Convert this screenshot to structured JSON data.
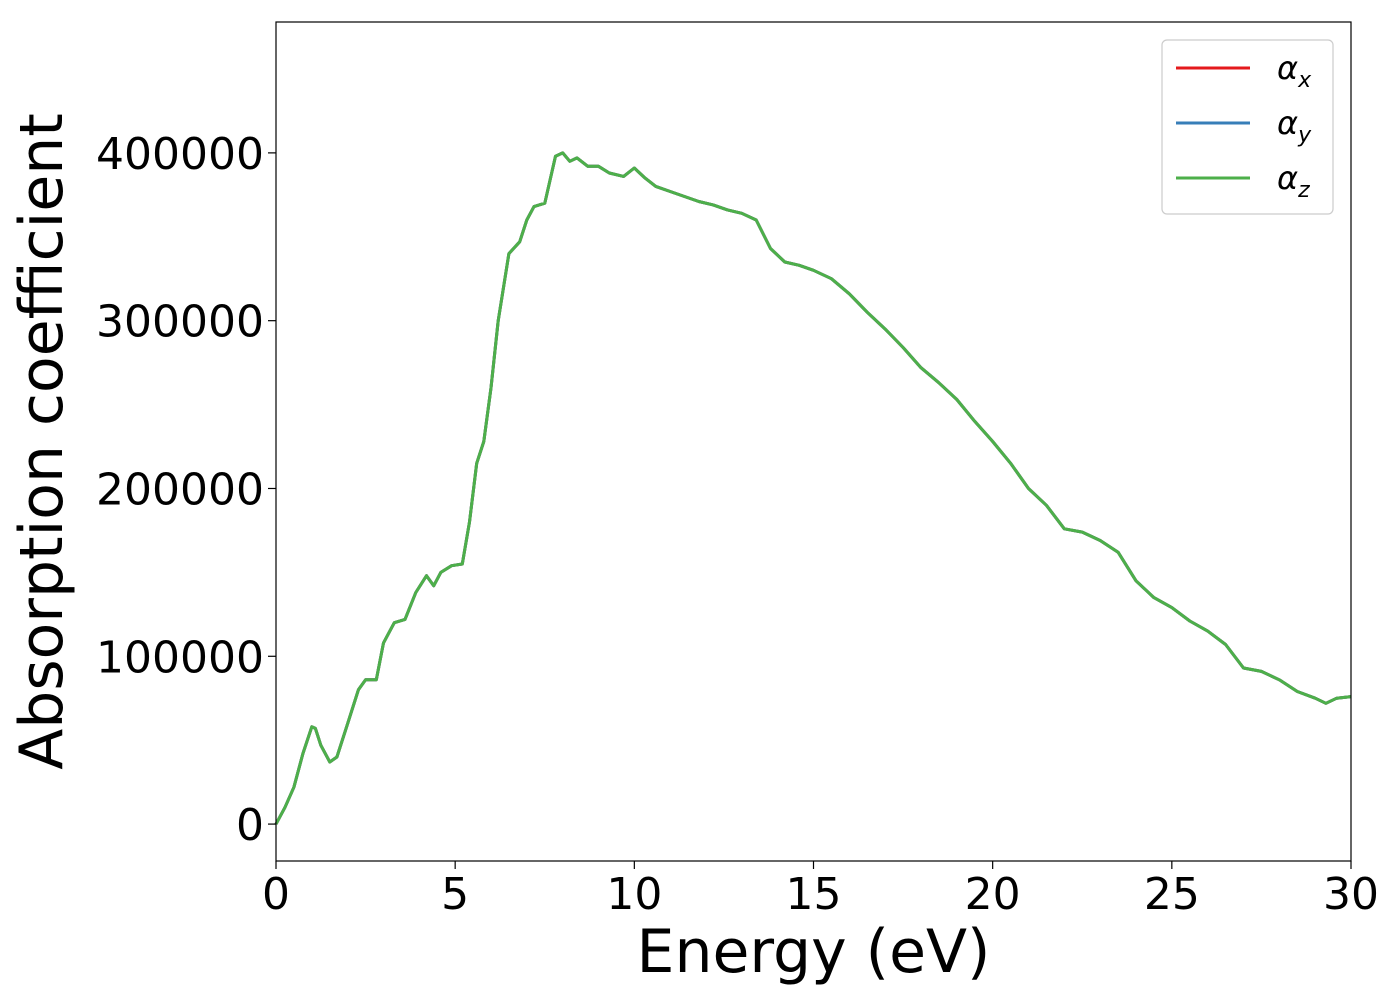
{
  "chart_data": {
    "type": "line",
    "xlabel": "Energy (eV)",
    "ylabel": "Absorption coefficient",
    "xlim": [
      0,
      30
    ],
    "ylim": [
      -22000,
      478000
    ],
    "xticks": [
      0,
      5,
      10,
      15,
      20,
      25,
      30
    ],
    "xtick_labels": [
      "0",
      "5",
      "10",
      "15",
      "20",
      "25",
      "30"
    ],
    "yticks": [
      0,
      100000,
      200000,
      300000,
      400000
    ],
    "ytick_labels": [
      "0",
      "100000",
      "200000",
      "300000",
      "400000"
    ],
    "grid": false,
    "legend_position": "top-right",
    "x": [
      0,
      0.25,
      0.5,
      0.75,
      1.0,
      1.1,
      1.25,
      1.5,
      1.7,
      2.0,
      2.3,
      2.5,
      2.8,
      3.0,
      3.3,
      3.6,
      3.9,
      4.2,
      4.4,
      4.6,
      4.9,
      5.2,
      5.4,
      5.6,
      5.8,
      6.0,
      6.2,
      6.5,
      6.8,
      7.0,
      7.2,
      7.5,
      7.8,
      8.0,
      8.2,
      8.4,
      8.7,
      9.0,
      9.3,
      9.7,
      10.0,
      10.3,
      10.6,
      11.0,
      11.4,
      11.8,
      12.2,
      12.6,
      13.0,
      13.4,
      13.8,
      14.2,
      14.6,
      15.0,
      15.5,
      16.0,
      16.5,
      17.0,
      17.5,
      18.0,
      18.5,
      19.0,
      19.5,
      20.0,
      20.5,
      21.0,
      21.5,
      22.0,
      22.5,
      23.0,
      23.5,
      24.0,
      24.5,
      25.0,
      25.5,
      26.0,
      26.5,
      27.0,
      27.5,
      28.0,
      28.5,
      29.0,
      29.3,
      29.6,
      30.0
    ],
    "series": [
      {
        "name": "α_x",
        "label_base": "α",
        "label_sub": "x",
        "color": "#e41a1c",
        "values": [
          0,
          10000,
          22000,
          42000,
          58000,
          57000,
          47000,
          37000,
          40000,
          60000,
          80000,
          86000,
          86000,
          108000,
          120000,
          122000,
          138000,
          148000,
          142000,
          150000,
          154000,
          155000,
          180000,
          215000,
          228000,
          260000,
          300000,
          340000,
          347000,
          360000,
          368000,
          370000,
          398000,
          400000,
          395000,
          397000,
          392000,
          392000,
          388000,
          386000,
          391000,
          385000,
          380000,
          377000,
          374000,
          371000,
          369000,
          366000,
          364000,
          360000,
          343000,
          335000,
          333000,
          330000,
          325000,
          316000,
          305000,
          295000,
          284000,
          272000,
          263000,
          253000,
          240000,
          228000,
          215000,
          200000,
          190000,
          176000,
          174000,
          169000,
          162000,
          145000,
          135000,
          129000,
          121000,
          115000,
          107000,
          93000,
          91000,
          86000,
          79000,
          75000,
          72000,
          75000,
          76000
        ]
      },
      {
        "name": "α_y",
        "label_base": "α",
        "label_sub": "y",
        "color": "#377eb8",
        "values": [
          0,
          10000,
          22000,
          42000,
          58000,
          57000,
          47000,
          37000,
          40000,
          60000,
          80000,
          86000,
          86000,
          108000,
          120000,
          122000,
          138000,
          148000,
          142000,
          150000,
          154000,
          155000,
          180000,
          215000,
          228000,
          260000,
          300000,
          340000,
          347000,
          360000,
          368000,
          370000,
          398000,
          400000,
          395000,
          397000,
          392000,
          392000,
          388000,
          386000,
          391000,
          385000,
          380000,
          377000,
          374000,
          371000,
          369000,
          366000,
          364000,
          360000,
          343000,
          335000,
          333000,
          330000,
          325000,
          316000,
          305000,
          295000,
          284000,
          272000,
          263000,
          253000,
          240000,
          228000,
          215000,
          200000,
          190000,
          176000,
          174000,
          169000,
          162000,
          145000,
          135000,
          129000,
          121000,
          115000,
          107000,
          93000,
          91000,
          86000,
          79000,
          75000,
          72000,
          75000,
          76000
        ]
      },
      {
        "name": "α_z",
        "label_base": "α",
        "label_sub": "z",
        "color": "#4daf4a",
        "values": [
          0,
          10000,
          22000,
          42000,
          58000,
          57000,
          47000,
          37000,
          40000,
          60000,
          80000,
          86000,
          86000,
          108000,
          120000,
          122000,
          138000,
          148000,
          142000,
          150000,
          154000,
          155000,
          180000,
          215000,
          228000,
          260000,
          300000,
          340000,
          347000,
          360000,
          368000,
          370000,
          398000,
          400000,
          395000,
          397000,
          392000,
          392000,
          388000,
          386000,
          391000,
          385000,
          380000,
          377000,
          374000,
          371000,
          369000,
          366000,
          364000,
          360000,
          343000,
          335000,
          333000,
          330000,
          325000,
          316000,
          305000,
          295000,
          284000,
          272000,
          263000,
          253000,
          240000,
          228000,
          215000,
          200000,
          190000,
          176000,
          174000,
          169000,
          162000,
          145000,
          135000,
          129000,
          121000,
          115000,
          107000,
          93000,
          91000,
          86000,
          79000,
          75000,
          72000,
          75000,
          76000
        ]
      }
    ]
  }
}
